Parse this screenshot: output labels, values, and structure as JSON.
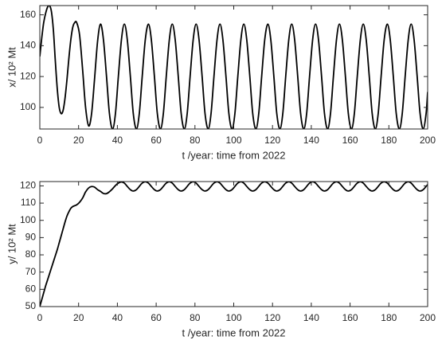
{
  "chart_data": [
    {
      "type": "line",
      "xlabel": "t /year: time from 2022",
      "ylabel": "x/ 10² Mt",
      "x": [
        0,
        1,
        2,
        3,
        4,
        5,
        6,
        7,
        8,
        9,
        10,
        11,
        12,
        13,
        14,
        15,
        16,
        17,
        18,
        19,
        20.5,
        22.1,
        23.6,
        25.2,
        26.7,
        28.2,
        29.8,
        31.3,
        32.8,
        34.4,
        35.9,
        37.5,
        39.0,
        40.5,
        42.1,
        43.6,
        45.1,
        46.7,
        48.2,
        49.8,
        51.3,
        52.8,
        54.4,
        56.0,
        57.5,
        59.1,
        60.6,
        62.2,
        63.7,
        65.2,
        66.8,
        68.3,
        69.8,
        71.4,
        72.9,
        74.5,
        76.0,
        77.5,
        79.1,
        80.6,
        82.1,
        83.7,
        85.2,
        86.8,
        88.3,
        89.8,
        91.4,
        92.9,
        94.4,
        96.0,
        97.5,
        99.1,
        100.6,
        102.1,
        103.7,
        105.2,
        106.7,
        108.3,
        109.8,
        111.4,
        112.9,
        114.4,
        116.0,
        117.6,
        119.1,
        120.7,
        122.2,
        123.8,
        125.3,
        126.8,
        128.4,
        129.9,
        131.4,
        133.0,
        134.5,
        136.1,
        137.6,
        139.1,
        140.7,
        142.2,
        143.7,
        145.3,
        146.8,
        148.4,
        149.9,
        151.4,
        153.0,
        154.5,
        156.0,
        157.6,
        159.1,
        160.7,
        162.2,
        163.7,
        165.3,
        166.8,
        168.3,
        169.9,
        171.4,
        173.0,
        174.5,
        176.0,
        177.6,
        179.2,
        180.7,
        182.3,
        183.8,
        185.4,
        186.9,
        188.4,
        190.0,
        191.5,
        193.0,
        194.6,
        196.1,
        197.7,
        199.2,
        200
      ],
      "series": [
        {
          "color": "#000000",
          "values": [
            133,
            145,
            155,
            161,
            165,
            166,
            162,
            150,
            130,
            112,
            100,
            96,
            98,
            106,
            118,
            132,
            144,
            152,
            155,
            155,
            147,
            124,
            100,
            88,
            96,
            118,
            143,
            154,
            144,
            120,
            96,
            86,
            96,
            120,
            144,
            154,
            144,
            120,
            96,
            86,
            96,
            120,
            144,
            154,
            144,
            120,
            96,
            86,
            96,
            120,
            144,
            154,
            144,
            120,
            96,
            86,
            96,
            120,
            144,
            154,
            144,
            120,
            96,
            86,
            96,
            120,
            144,
            154,
            144,
            120,
            96,
            86,
            96,
            120,
            144,
            154,
            144,
            120,
            96,
            86,
            96,
            120,
            144,
            154,
            144,
            120,
            96,
            86,
            96,
            120,
            144,
            154,
            144,
            120,
            96,
            86,
            96,
            120,
            144,
            154,
            144,
            120,
            96,
            86,
            96,
            120,
            144,
            154,
            144,
            120,
            96,
            86,
            96,
            120,
            144,
            154,
            144,
            120,
            96,
            86,
            96,
            120,
            144,
            154,
            144,
            120,
            96,
            86,
            96,
            120,
            144,
            154,
            144,
            120,
            96,
            86,
            96,
            110
          ]
        }
      ],
      "xlim": [
        0,
        200
      ],
      "xticks": [
        0,
        20,
        40,
        60,
        80,
        100,
        120,
        140,
        160,
        180,
        200
      ],
      "ylim": [
        86,
        166
      ],
      "yticks": [
        100,
        120,
        140,
        160
      ]
    },
    {
      "type": "line",
      "xlabel": "t /year: time from 2022",
      "ylabel": "y/ 10² Mt",
      "x": [
        0,
        1,
        2,
        3,
        4,
        5,
        6,
        7,
        8,
        9,
        10,
        11,
        12,
        13,
        14,
        15,
        16,
        17,
        18,
        19,
        20.5,
        22.1,
        23.6,
        25.2,
        26.7,
        28.2,
        29.8,
        31.3,
        32.8,
        34.4,
        35.9,
        37.5,
        39.0,
        40.5,
        42.1,
        43.6,
        45.1,
        46.7,
        48.2,
        49.8,
        51.3,
        52.8,
        54.4,
        56.0,
        57.5,
        59.1,
        60.6,
        62.2,
        63.7,
        65.2,
        66.8,
        68.3,
        69.8,
        71.4,
        72.9,
        74.5,
        76.0,
        77.5,
        79.1,
        80.6,
        82.1,
        83.7,
        85.2,
        86.8,
        88.3,
        89.8,
        91.4,
        92.9,
        94.4,
        96.0,
        97.5,
        99.1,
        100.6,
        102.1,
        103.7,
        105.2,
        106.7,
        108.3,
        109.8,
        111.4,
        112.9,
        114.4,
        116.0,
        117.6,
        119.1,
        120.7,
        122.2,
        123.8,
        125.3,
        126.8,
        128.4,
        129.9,
        131.4,
        133.0,
        134.5,
        136.1,
        137.6,
        139.1,
        140.7,
        142.2,
        143.7,
        145.3,
        146.8,
        148.4,
        149.9,
        151.4,
        153.0,
        154.5,
        156.0,
        157.6,
        159.1,
        160.7,
        162.2,
        163.7,
        165.3,
        166.8,
        168.3,
        169.9,
        171.4,
        173.0,
        174.5,
        176.0,
        177.6,
        179.2,
        180.7,
        182.3,
        183.8,
        185.4,
        186.9,
        188.4,
        190.0,
        191.5,
        193.0,
        194.6,
        196.1,
        197.7,
        199.2,
        200
      ],
      "series": [
        {
          "color": "#000000",
          "values": [
            50,
            54,
            58,
            62,
            65.5,
            69,
            72.5,
            76,
            79.5,
            83,
            87,
            91,
            95,
            99,
            102.5,
            105,
            107,
            108,
            108.5,
            109,
            110.5,
            113,
            116.5,
            118.8,
            119.6,
            119.3,
            117.8,
            116.8,
            115.6,
            115.5,
            116.6,
            118.3,
            120.2,
            121.6,
            122.3,
            121.6,
            119.7,
            117.8,
            117,
            117.8,
            119.7,
            121.6,
            122.4,
            121.6,
            119.7,
            117.8,
            117,
            117.8,
            119.7,
            121.6,
            122.4,
            121.6,
            119.7,
            117.8,
            117,
            117.8,
            119.7,
            121.6,
            122.4,
            121.6,
            119.7,
            117.8,
            117,
            117.8,
            119.7,
            121.6,
            122.4,
            121.6,
            119.7,
            117.8,
            117,
            117.8,
            119.7,
            121.6,
            122.4,
            121.6,
            119.7,
            117.8,
            117,
            117.8,
            119.7,
            121.6,
            122.4,
            121.6,
            119.7,
            117.8,
            117,
            117.8,
            119.7,
            121.6,
            122.4,
            121.6,
            119.7,
            117.8,
            117,
            117.8,
            119.7,
            121.6,
            122.4,
            121.6,
            119.7,
            117.8,
            117,
            117.8,
            119.7,
            121.6,
            122.4,
            121.6,
            119.7,
            117.8,
            117,
            117.8,
            119.7,
            121.6,
            122.4,
            121.6,
            119.7,
            117.8,
            117,
            117.8,
            119.7,
            121.6,
            122.4,
            121.6,
            119.7,
            117.8,
            117,
            117.8,
            119.7,
            121.6,
            122.4,
            121.6,
            119.7,
            117.8,
            117,
            117.8,
            119.7,
            120.7
          ]
        }
      ],
      "xlim": [
        0,
        200
      ],
      "xticks": [
        0,
        20,
        40,
        60,
        80,
        100,
        120,
        140,
        160,
        180,
        200
      ],
      "ylim": [
        50,
        122.5
      ],
      "yticks": [
        50,
        60,
        70,
        80,
        90,
        100,
        110,
        120
      ]
    }
  ]
}
